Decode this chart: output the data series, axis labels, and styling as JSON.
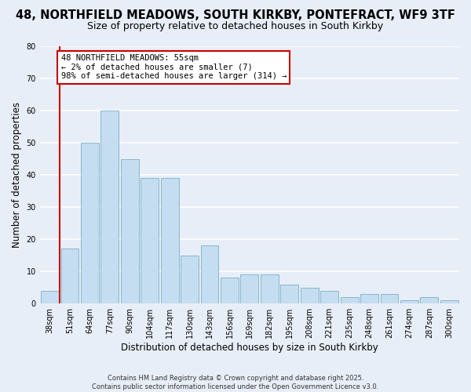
{
  "title": "48, NORTHFIELD MEADOWS, SOUTH KIRKBY, PONTEFRACT, WF9 3TF",
  "subtitle": "Size of property relative to detached houses in South Kirkby",
  "xlabel": "Distribution of detached houses by size in South Kirkby",
  "ylabel": "Number of detached properties",
  "bar_labels": [
    "38sqm",
    "51sqm",
    "64sqm",
    "77sqm",
    "90sqm",
    "104sqm",
    "117sqm",
    "130sqm",
    "143sqm",
    "156sqm",
    "169sqm",
    "182sqm",
    "195sqm",
    "208sqm",
    "221sqm",
    "235sqm",
    "248sqm",
    "261sqm",
    "274sqm",
    "287sqm",
    "300sqm"
  ],
  "bar_values": [
    4,
    17,
    50,
    60,
    45,
    39,
    39,
    15,
    18,
    8,
    9,
    9,
    6,
    5,
    4,
    2,
    3,
    3,
    1,
    2,
    1
  ],
  "bar_color": "#c5ddf0",
  "bar_edge_color": "#7aafc8",
  "vline_color": "#cc0000",
  "ylim": [
    0,
    80
  ],
  "yticks": [
    0,
    10,
    20,
    30,
    40,
    50,
    60,
    70,
    80
  ],
  "annotation_text": "48 NORTHFIELD MEADOWS: 55sqm\n← 2% of detached houses are smaller (7)\n98% of semi-detached houses are larger (314) →",
  "annotation_box_edge": "#cc0000",
  "footer_text": "Contains HM Land Registry data © Crown copyright and database right 2025.\nContains public sector information licensed under the Open Government Licence v3.0.",
  "background_color": "#e8eef8",
  "grid_color": "#ffffff",
  "title_fontsize": 10.5,
  "subtitle_fontsize": 9,
  "axis_label_fontsize": 8.5,
  "tick_fontsize": 7,
  "annotation_fontsize": 7.5,
  "footer_fontsize": 6
}
